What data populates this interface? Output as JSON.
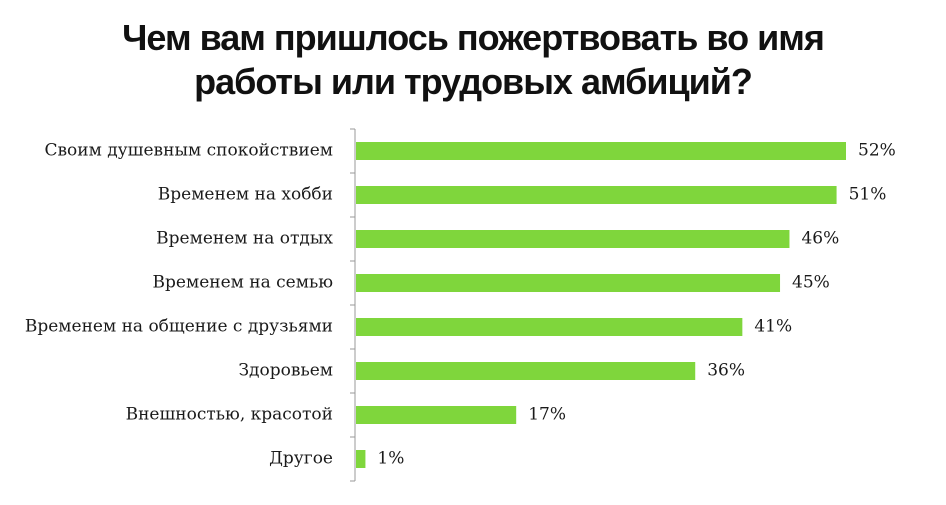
{
  "chart_data": {
    "type": "bar",
    "orientation": "horizontal",
    "title_lines": [
      "Чем вам пришлось пожертвовать во имя",
      "работы или трудовых амбиций?"
    ],
    "categories": [
      "Своим душевным спокойствием",
      "Временем на хобби",
      "Временем на отдых",
      "Временем на семью",
      "Временем на общение с друзьями",
      "Здоровьем",
      "Внешностью, красотой",
      "Другое"
    ],
    "values": [
      52,
      51,
      46,
      45,
      41,
      36,
      17,
      1
    ],
    "value_labels": [
      "52%",
      "51%",
      "46%",
      "45%",
      "41%",
      "36%",
      "17%",
      "1%"
    ],
    "unit": "%",
    "xlim": [
      0,
      52
    ],
    "grid": false,
    "legend": "none",
    "bar_color": "#7fd63c",
    "axis_color": "#999999"
  }
}
